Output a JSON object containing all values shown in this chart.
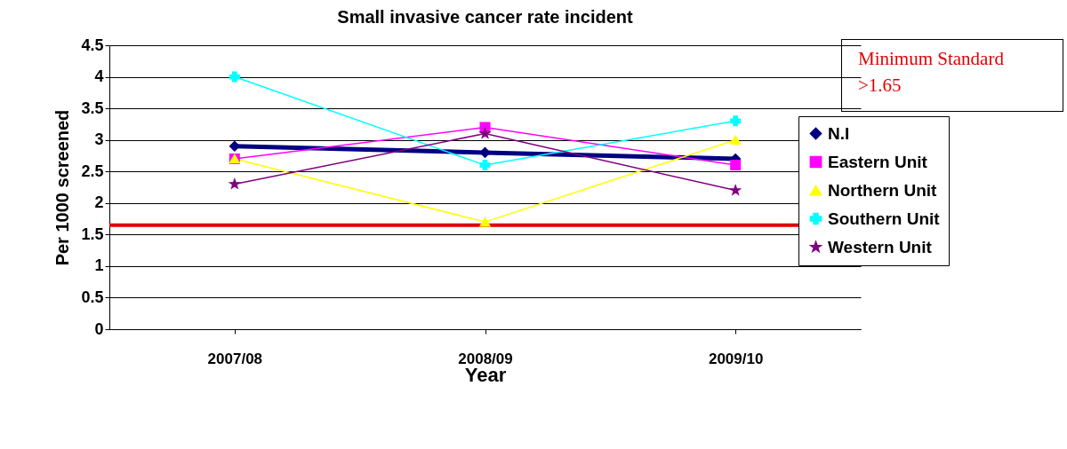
{
  "chart_data": {
    "type": "line",
    "title": "Small invasive cancer rate incident",
    "xlabel": "Year",
    "ylabel": "Per 1000 screened",
    "categories": [
      "2007/08",
      "2008/09",
      "2009/10"
    ],
    "series": [
      {
        "name": "N.I",
        "color": "#000080",
        "marker": "diamond",
        "values": [
          2.9,
          2.8,
          2.7
        ]
      },
      {
        "name": "Eastern Unit",
        "color": "#ff00ff",
        "marker": "square",
        "values": [
          2.7,
          3.2,
          2.6
        ]
      },
      {
        "name": "Northern Unit",
        "color": "#ffff00",
        "marker": "triangle",
        "values": [
          2.7,
          1.7,
          3.0
        ]
      },
      {
        "name": "Southern Unit",
        "color": "#00ffff",
        "marker": "cross",
        "values": [
          4.0,
          2.6,
          3.3
        ]
      },
      {
        "name": "Western Unit",
        "color": "#800080",
        "marker": "star",
        "values": [
          2.3,
          3.1,
          2.2
        ]
      }
    ],
    "ylim": [
      0,
      4.5
    ],
    "yticks": [
      0,
      0.5,
      1,
      1.5,
      2,
      2.5,
      3,
      3.5,
      4,
      4.5
    ],
    "grid": "y",
    "legend": "right",
    "ref_lines": [
      {
        "axis": "y",
        "value": 1.65,
        "color": "#dd0000"
      }
    ],
    "annotations": [
      "Minimum Standard >1.65"
    ]
  }
}
